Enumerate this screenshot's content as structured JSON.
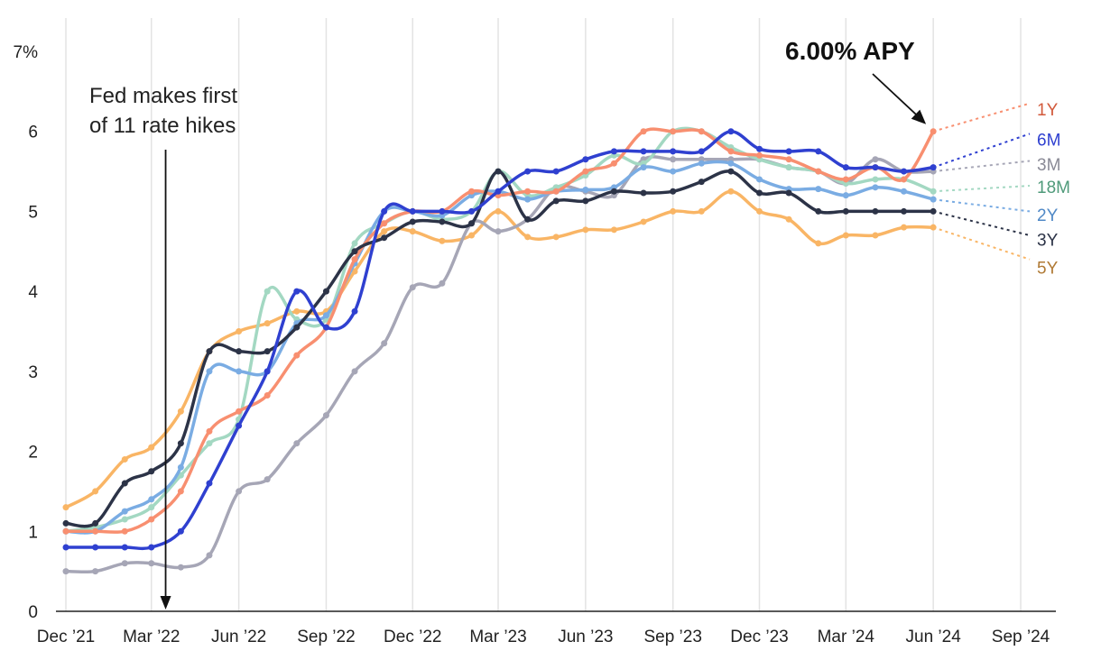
{
  "chart_data": {
    "type": "line",
    "y_unit_label": "7%",
    "yticks": [
      0,
      1,
      2,
      3,
      4,
      5,
      6
    ],
    "ylim": [
      0,
      7
    ],
    "xticks": [
      "Dec ’21",
      "Mar ’22",
      "Jun ’22",
      "Sep ’22",
      "Dec ’22",
      "Mar ’23",
      "Jun ’23",
      "Sep ’23",
      "Dec ’23",
      "Mar ’24",
      "Jun ’24",
      "Sep ’24"
    ],
    "x_tick_dates": [
      "2021-12",
      "2022-03",
      "2022-06",
      "2022-09",
      "2022-12",
      "2023-03",
      "2023-06",
      "2023-09",
      "2023-12",
      "2024-03",
      "2024-06",
      "2024-09"
    ],
    "grid": "vertical",
    "annotation": {
      "lines": [
        "Fed makes first",
        "of 11 rate hikes"
      ],
      "date": "2022-03-16"
    },
    "callout": {
      "text": "6.00% APY",
      "series": "1Y",
      "date": "2024-06-01",
      "value": 6.0
    },
    "series": [
      {
        "name": "5Y",
        "color": "#f9b565",
        "label_color": "#b07a35",
        "points": [
          [
            "2021-12-01",
            1.3
          ],
          [
            "2022-01-01",
            1.5
          ],
          [
            "2022-02-01",
            1.9
          ],
          [
            "2022-03-01",
            2.05
          ],
          [
            "2022-04-01",
            2.5
          ],
          [
            "2022-05-01",
            3.25
          ],
          [
            "2022-06-01",
            3.5
          ],
          [
            "2022-07-01",
            3.6
          ],
          [
            "2022-08-01",
            3.75
          ],
          [
            "2022-09-01",
            3.75
          ],
          [
            "2022-10-01",
            4.25
          ],
          [
            "2022-11-01",
            4.75
          ],
          [
            "2022-12-01",
            4.75
          ],
          [
            "2023-01-01",
            4.63
          ],
          [
            "2023-02-01",
            4.7
          ],
          [
            "2023-03-01",
            5.0
          ],
          [
            "2023-04-01",
            4.68
          ],
          [
            "2023-05-01",
            4.68
          ],
          [
            "2023-06-01",
            4.77
          ],
          [
            "2023-07-01",
            4.77
          ],
          [
            "2023-08-01",
            4.87
          ],
          [
            "2023-09-01",
            5.0
          ],
          [
            "2023-10-01",
            5.0
          ],
          [
            "2023-11-01",
            5.25
          ],
          [
            "2023-12-01",
            5.0
          ],
          [
            "2024-01-01",
            4.9
          ],
          [
            "2024-02-01",
            4.6
          ],
          [
            "2024-03-01",
            4.7
          ],
          [
            "2024-04-01",
            4.7
          ],
          [
            "2024-05-01",
            4.8
          ],
          [
            "2024-06-01",
            4.8
          ]
        ],
        "projection_end": 4.4
      },
      {
        "name": "3M",
        "color": "#a6a6b6",
        "label_color": "#8a8a96",
        "points": [
          [
            "2021-12-01",
            0.5
          ],
          [
            "2022-01-01",
            0.5
          ],
          [
            "2022-02-01",
            0.6
          ],
          [
            "2022-03-01",
            0.6
          ],
          [
            "2022-04-01",
            0.55
          ],
          [
            "2022-05-01",
            0.7
          ],
          [
            "2022-06-01",
            1.5
          ],
          [
            "2022-07-01",
            1.65
          ],
          [
            "2022-08-01",
            2.1
          ],
          [
            "2022-09-01",
            2.45
          ],
          [
            "2022-10-01",
            3.0
          ],
          [
            "2022-11-01",
            3.35
          ],
          [
            "2022-12-01",
            4.05
          ],
          [
            "2023-01-01",
            4.1
          ],
          [
            "2023-02-01",
            4.85
          ],
          [
            "2023-03-01",
            4.75
          ],
          [
            "2023-04-01",
            4.9
          ],
          [
            "2023-05-01",
            5.3
          ],
          [
            "2023-06-01",
            5.25
          ],
          [
            "2023-07-01",
            5.2
          ],
          [
            "2023-08-01",
            5.65
          ],
          [
            "2023-09-01",
            5.65
          ],
          [
            "2023-10-01",
            5.65
          ],
          [
            "2023-11-01",
            5.65
          ],
          [
            "2023-12-01",
            5.65
          ],
          [
            "2024-01-01",
            5.55
          ],
          [
            "2024-02-01",
            5.5
          ],
          [
            "2024-03-01",
            5.35
          ],
          [
            "2024-04-01",
            5.65
          ],
          [
            "2024-05-01",
            5.5
          ],
          [
            "2024-06-01",
            5.5
          ]
        ],
        "projection_end": 5.63
      },
      {
        "name": "18M",
        "color": "#a3d8c2",
        "label_color": "#4f9a7a",
        "points": [
          [
            "2021-12-01",
            1.0
          ],
          [
            "2022-01-01",
            1.05
          ],
          [
            "2022-02-01",
            1.15
          ],
          [
            "2022-03-01",
            1.3
          ],
          [
            "2022-04-01",
            1.7
          ],
          [
            "2022-05-01",
            2.1
          ],
          [
            "2022-06-01",
            2.4
          ],
          [
            "2022-07-01",
            4.0
          ],
          [
            "2022-08-01",
            3.65
          ],
          [
            "2022-09-01",
            3.65
          ],
          [
            "2022-10-01",
            4.6
          ],
          [
            "2022-11-01",
            4.85
          ],
          [
            "2022-12-01",
            5.0
          ],
          [
            "2023-01-01",
            4.9
          ],
          [
            "2023-02-01",
            5.0
          ],
          [
            "2023-03-01",
            5.5
          ],
          [
            "2023-04-01",
            5.2
          ],
          [
            "2023-05-01",
            5.3
          ],
          [
            "2023-06-01",
            5.45
          ],
          [
            "2023-07-01",
            5.7
          ],
          [
            "2023-08-01",
            5.6
          ],
          [
            "2023-09-01",
            6.0
          ],
          [
            "2023-10-01",
            6.0
          ],
          [
            "2023-11-01",
            5.8
          ],
          [
            "2023-12-01",
            5.65
          ],
          [
            "2024-01-01",
            5.55
          ],
          [
            "2024-02-01",
            5.5
          ],
          [
            "2024-03-01",
            5.35
          ],
          [
            "2024-04-01",
            5.4
          ],
          [
            "2024-05-01",
            5.4
          ],
          [
            "2024-06-01",
            5.25
          ]
        ],
        "projection_end": 5.32
      },
      {
        "name": "2Y",
        "color": "#7aace3",
        "label_color": "#4f88c6",
        "points": [
          [
            "2021-12-01",
            1.0
          ],
          [
            "2022-01-01",
            1.0
          ],
          [
            "2022-02-01",
            1.25
          ],
          [
            "2022-03-01",
            1.4
          ],
          [
            "2022-04-01",
            1.8
          ],
          [
            "2022-05-01",
            3.0
          ],
          [
            "2022-06-01",
            3.0
          ],
          [
            "2022-07-01",
            3.0
          ],
          [
            "2022-08-01",
            3.6
          ],
          [
            "2022-09-01",
            3.7
          ],
          [
            "2022-10-01",
            4.35
          ],
          [
            "2022-11-01",
            5.0
          ],
          [
            "2022-12-01",
            5.0
          ],
          [
            "2023-01-01",
            4.95
          ],
          [
            "2023-02-01",
            5.2
          ],
          [
            "2023-03-01",
            5.25
          ],
          [
            "2023-04-01",
            5.15
          ],
          [
            "2023-05-01",
            5.25
          ],
          [
            "2023-06-01",
            5.27
          ],
          [
            "2023-07-01",
            5.3
          ],
          [
            "2023-08-01",
            5.55
          ],
          [
            "2023-09-01",
            5.5
          ],
          [
            "2023-10-01",
            5.6
          ],
          [
            "2023-11-01",
            5.6
          ],
          [
            "2023-12-01",
            5.4
          ],
          [
            "2024-01-01",
            5.28
          ],
          [
            "2024-02-01",
            5.28
          ],
          [
            "2024-03-01",
            5.2
          ],
          [
            "2024-04-01",
            5.3
          ],
          [
            "2024-05-01",
            5.25
          ],
          [
            "2024-06-01",
            5.15
          ]
        ],
        "projection_end": 5.0
      },
      {
        "name": "1Y",
        "color": "#f88f70",
        "label_color": "#d2593b",
        "points": [
          [
            "2021-12-01",
            1.0
          ],
          [
            "2022-01-01",
            1.0
          ],
          [
            "2022-02-01",
            1.0
          ],
          [
            "2022-03-01",
            1.15
          ],
          [
            "2022-04-01",
            1.5
          ],
          [
            "2022-05-01",
            2.25
          ],
          [
            "2022-06-01",
            2.5
          ],
          [
            "2022-07-01",
            2.7
          ],
          [
            "2022-08-01",
            3.2
          ],
          [
            "2022-09-01",
            3.55
          ],
          [
            "2022-10-01",
            4.4
          ],
          [
            "2022-11-01",
            4.85
          ],
          [
            "2022-12-01",
            5.0
          ],
          [
            "2023-01-01",
            5.0
          ],
          [
            "2023-02-01",
            5.25
          ],
          [
            "2023-03-01",
            5.2
          ],
          [
            "2023-04-01",
            5.25
          ],
          [
            "2023-05-01",
            5.25
          ],
          [
            "2023-06-01",
            5.5
          ],
          [
            "2023-07-01",
            5.6
          ],
          [
            "2023-08-01",
            6.0
          ],
          [
            "2023-09-01",
            6.0
          ],
          [
            "2023-10-01",
            6.0
          ],
          [
            "2023-11-01",
            5.75
          ],
          [
            "2023-12-01",
            5.7
          ],
          [
            "2024-01-01",
            5.65
          ],
          [
            "2024-02-01",
            5.5
          ],
          [
            "2024-03-01",
            5.4
          ],
          [
            "2024-04-01",
            5.55
          ],
          [
            "2024-05-01",
            5.4
          ],
          [
            "2024-06-01",
            6.0
          ]
        ],
        "projection_end": 6.35
      },
      {
        "name": "3Y",
        "color": "#2c3347",
        "label_color": "#2c3347",
        "points": [
          [
            "2021-12-01",
            1.1
          ],
          [
            "2022-01-01",
            1.1
          ],
          [
            "2022-02-01",
            1.6
          ],
          [
            "2022-03-01",
            1.75
          ],
          [
            "2022-04-01",
            2.1
          ],
          [
            "2022-05-01",
            3.25
          ],
          [
            "2022-06-01",
            3.25
          ],
          [
            "2022-07-01",
            3.25
          ],
          [
            "2022-08-01",
            3.55
          ],
          [
            "2022-09-01",
            4.0
          ],
          [
            "2022-10-01",
            4.5
          ],
          [
            "2022-11-01",
            4.67
          ],
          [
            "2022-12-01",
            4.87
          ],
          [
            "2023-01-01",
            4.87
          ],
          [
            "2023-02-01",
            4.85
          ],
          [
            "2023-03-01",
            5.5
          ],
          [
            "2023-04-01",
            4.9
          ],
          [
            "2023-05-01",
            5.13
          ],
          [
            "2023-06-01",
            5.13
          ],
          [
            "2023-07-01",
            5.25
          ],
          [
            "2023-08-01",
            5.23
          ],
          [
            "2023-09-01",
            5.25
          ],
          [
            "2023-10-01",
            5.37
          ],
          [
            "2023-11-01",
            5.5
          ],
          [
            "2023-12-01",
            5.23
          ],
          [
            "2024-01-01",
            5.23
          ],
          [
            "2024-02-01",
            5.0
          ],
          [
            "2024-03-01",
            5.0
          ],
          [
            "2024-04-01",
            5.0
          ],
          [
            "2024-05-01",
            5.0
          ],
          [
            "2024-06-01",
            5.0
          ]
        ],
        "projection_end": 4.7
      },
      {
        "name": "6M",
        "color": "#2f40d0",
        "label_color": "#2f40d0",
        "points": [
          [
            "2021-12-01",
            0.8
          ],
          [
            "2022-01-01",
            0.8
          ],
          [
            "2022-02-01",
            0.8
          ],
          [
            "2022-03-01",
            0.8
          ],
          [
            "2022-04-01",
            1.0
          ],
          [
            "2022-05-01",
            1.6
          ],
          [
            "2022-06-01",
            2.32
          ],
          [
            "2022-07-01",
            3.0
          ],
          [
            "2022-08-01",
            4.0
          ],
          [
            "2022-09-01",
            3.55
          ],
          [
            "2022-10-01",
            3.75
          ],
          [
            "2022-11-01",
            5.0
          ],
          [
            "2022-12-01",
            5.0
          ],
          [
            "2023-01-01",
            5.0
          ],
          [
            "2023-02-01",
            5.0
          ],
          [
            "2023-03-01",
            5.25
          ],
          [
            "2023-04-01",
            5.5
          ],
          [
            "2023-05-01",
            5.5
          ],
          [
            "2023-06-01",
            5.65
          ],
          [
            "2023-07-01",
            5.75
          ],
          [
            "2023-08-01",
            5.75
          ],
          [
            "2023-09-01",
            5.75
          ],
          [
            "2023-10-01",
            5.75
          ],
          [
            "2023-11-01",
            6.0
          ],
          [
            "2023-12-01",
            5.78
          ],
          [
            "2024-01-01",
            5.75
          ],
          [
            "2024-02-01",
            5.75
          ],
          [
            "2024-03-01",
            5.55
          ],
          [
            "2024-04-01",
            5.55
          ],
          [
            "2024-05-01",
            5.5
          ],
          [
            "2024-06-01",
            5.55
          ]
        ],
        "projection_end": 5.97
      }
    ],
    "end_labels": [
      {
        "name": "1Y",
        "value_at_label": 6.28
      },
      {
        "name": "6M",
        "value_at_label": 5.9
      },
      {
        "name": "3M",
        "value_at_label": 5.59
      },
      {
        "name": "18M",
        "value_at_label": 5.31
      },
      {
        "name": "2Y",
        "value_at_label": 4.96
      },
      {
        "name": "3Y",
        "value_at_label": 4.65
      },
      {
        "name": "5Y",
        "value_at_label": 4.3
      }
    ],
    "projection_end_date": "2024-09-01"
  }
}
